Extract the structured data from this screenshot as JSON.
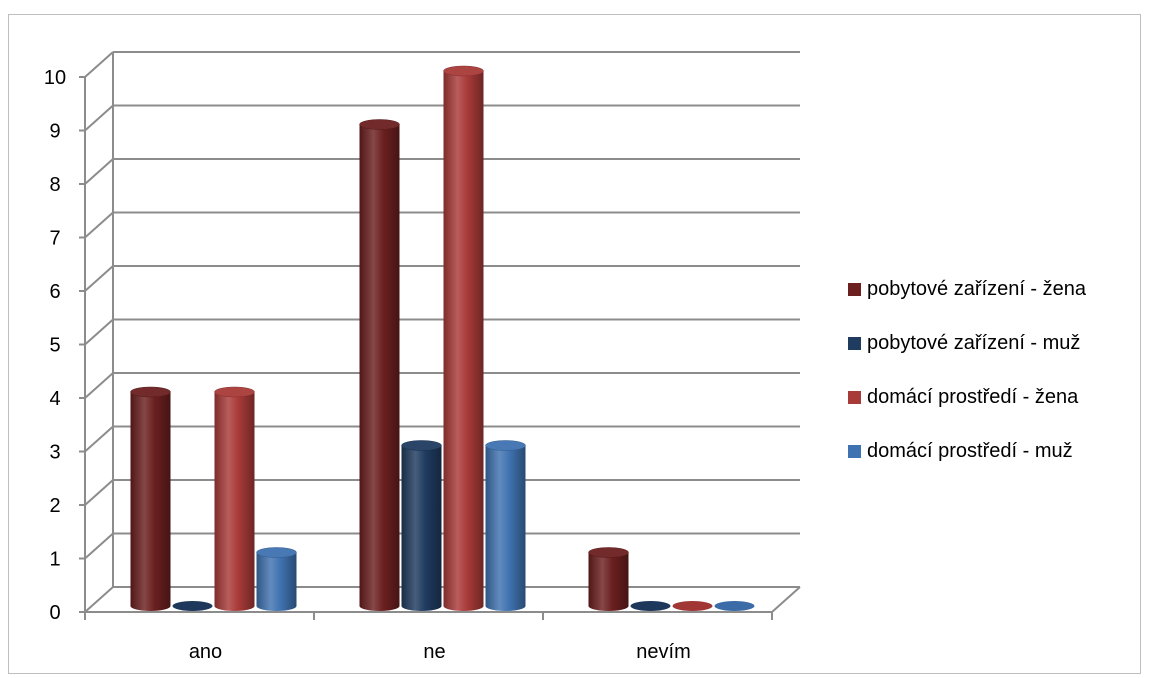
{
  "chart_data": {
    "type": "bar",
    "categories": [
      "ano",
      "ne",
      "nevím"
    ],
    "series": [
      {
        "name": "pobytové zařízení - žena",
        "values": [
          4,
          9,
          1
        ],
        "color": "#6b1f1f"
      },
      {
        "name": "pobytové zařízení - muž",
        "values": [
          0,
          3,
          0
        ],
        "color": "#1f3b5f"
      },
      {
        "name": "domácí prostředí - žena",
        "values": [
          4,
          10,
          0
        ],
        "color": "#a83a38"
      },
      {
        "name": "domácí prostředí - muž",
        "values": [
          1,
          3,
          0
        ],
        "color": "#3f72b0"
      }
    ],
    "ylim": [
      0,
      10
    ],
    "yticks": [
      "0",
      "1",
      "2",
      "3",
      "4",
      "5",
      "6",
      "7",
      "8",
      "9",
      "10"
    ],
    "grid": true,
    "legend_position": "right",
    "style": "3d-cylinder"
  }
}
